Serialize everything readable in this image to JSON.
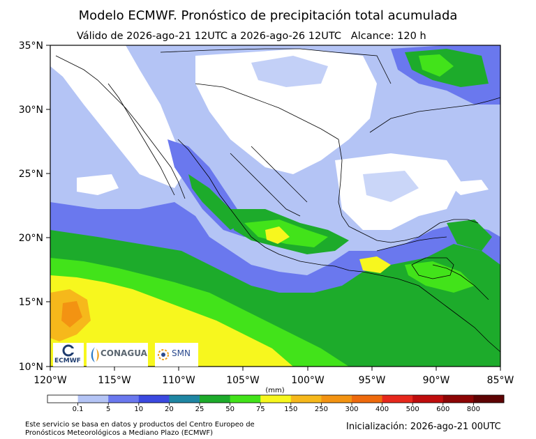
{
  "title": "Modelo ECMWF. Pronóstico de precipitación total acumulada",
  "subtitle": "Válido de 2026-ago-21 12UTC a 2026-ago-26 12UTC   Alcance: 120 h",
  "map": {
    "lat_labels": [
      "35°N",
      "30°N",
      "25°N",
      "20°N",
      "15°N",
      "10°N"
    ],
    "lon_labels": [
      "120°W",
      "115°W",
      "110°W",
      "105°W",
      "100°W",
      "95°W",
      "90°W",
      "85°W"
    ],
    "lat_range": [
      10,
      35
    ],
    "lon_range": [
      -120,
      -85
    ]
  },
  "colorbar": {
    "unit_label": "(mm)",
    "tick_labels": [
      "0.1",
      "5",
      "10",
      "20",
      "25",
      "50",
      "75",
      "150",
      "250",
      "300",
      "400",
      "500",
      "600",
      "800"
    ],
    "colors": [
      "#ffffff",
      "#b4c4f5",
      "#6a78ee",
      "#3b49e0",
      "#1f86a3",
      "#1dab2b",
      "#42e31a",
      "#f7f71e",
      "#f6b81b",
      "#f39312",
      "#ee6a0d",
      "#e6281c",
      "#bf0d0d",
      "#8c0505",
      "#5e0303"
    ]
  },
  "logos": {
    "ecmwf": "ECMWF",
    "conagua": "CONAGUA",
    "smn": "SMN"
  },
  "footer": {
    "credit": "Este servicio se basa en datos y productos del Centro Europeo de Pronósticos Meteorológicos a Mediano Plazo (ECMWF)",
    "init": "Inicialización: 2026-ago-21 00UTC"
  }
}
